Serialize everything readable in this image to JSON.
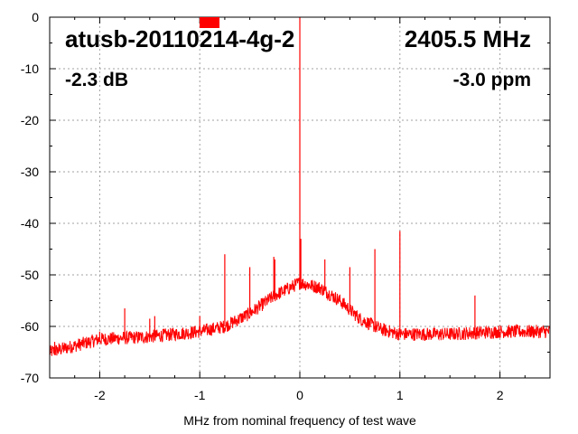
{
  "chart_data": {
    "type": "line",
    "title": "",
    "xlabel": "MHz from nominal frequency of test wave",
    "ylabel": "",
    "xlim": [
      -2.5,
      2.5
    ],
    "ylim": [
      -70,
      0
    ],
    "grid": true,
    "xticks": [
      -2,
      -1,
      0,
      1,
      2
    ],
    "yticks": [
      0,
      -10,
      -20,
      -30,
      -40,
      -50,
      -60,
      -70
    ],
    "annotations": {
      "device": "atusb-20110214-4g-2",
      "frequency": "2405.5 MHz",
      "level": "-2.3 dB",
      "offset": "-3.0 ppm"
    },
    "marker_color": "#ff0000",
    "series": [
      {
        "color": "#ff0000",
        "floor": [
          {
            "x": -2.5,
            "y": -65
          },
          {
            "x": -2.2,
            "y": -63.5
          },
          {
            "x": -2.0,
            "y": -62.5
          },
          {
            "x": -1.5,
            "y": -62
          },
          {
            "x": -1.0,
            "y": -61
          },
          {
            "x": -0.75,
            "y": -60
          },
          {
            "x": -0.5,
            "y": -57.5
          },
          {
            "x": -0.25,
            "y": -54
          },
          {
            "x": 0.0,
            "y": -51.5
          },
          {
            "x": 0.2,
            "y": -52.5
          },
          {
            "x": 0.4,
            "y": -55
          },
          {
            "x": 0.6,
            "y": -58.5
          },
          {
            "x": 0.8,
            "y": -60.5
          },
          {
            "x": 1.0,
            "y": -61.5
          },
          {
            "x": 1.5,
            "y": -61.5
          },
          {
            "x": 2.0,
            "y": -61
          },
          {
            "x": 2.5,
            "y": -61
          }
        ],
        "spurs": [
          {
            "x": -2.45,
            "y": -63
          },
          {
            "x": -2.0,
            "y": -61
          },
          {
            "x": -1.75,
            "y": -56.5
          },
          {
            "x": -1.5,
            "y": -58.5
          },
          {
            "x": -1.45,
            "y": -58
          },
          {
            "x": -1.0,
            "y": -58
          },
          {
            "x": -0.75,
            "y": -46
          },
          {
            "x": -0.5,
            "y": -48.5
          },
          {
            "x": -0.26,
            "y": -46.5
          },
          {
            "x": -0.25,
            "y": -47
          },
          {
            "x": 0.0,
            "y": 0
          },
          {
            "x": 0.01,
            "y": -43
          },
          {
            "x": 0.25,
            "y": -47
          },
          {
            "x": 0.5,
            "y": -48.5
          },
          {
            "x": 0.75,
            "y": -45
          },
          {
            "x": 1.0,
            "y": -41.5
          },
          {
            "x": 1.75,
            "y": -54
          }
        ]
      }
    ]
  }
}
